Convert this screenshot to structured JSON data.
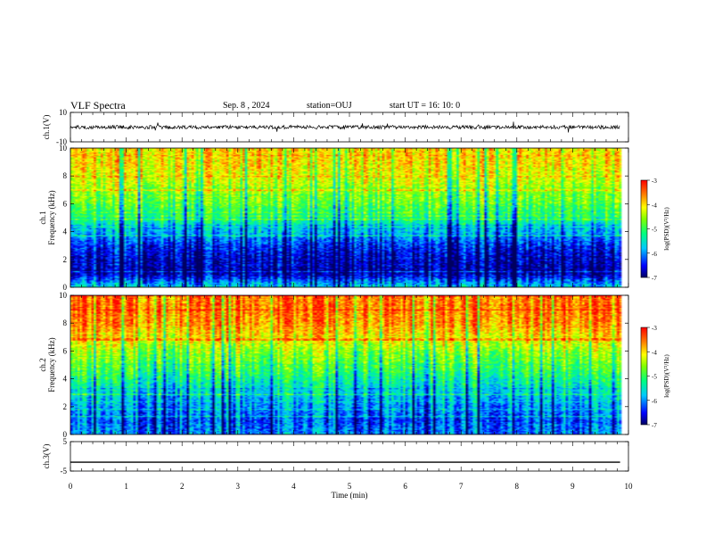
{
  "header": {
    "title": "VLF Spectra",
    "date": "Sep. 8 , 2024",
    "station": "station=OUJ",
    "start": "start UT =  16: 10: 0"
  },
  "chart_data": [
    {
      "type": "line",
      "panel": "ch1-waveform",
      "ylabel": "ch.1(V)",
      "ylim": [
        -10,
        10
      ],
      "yticks": [
        "10",
        "-10"
      ],
      "x_range_min": [
        0,
        9.85
      ],
      "baseline": 0,
      "color": "#000000"
    },
    {
      "type": "heatmap",
      "panel": "ch1-spectrogram",
      "ylabel": [
        "ch.1",
        "Frequency (kHz)"
      ],
      "ylim": [
        0,
        10
      ],
      "yticks": [
        "0",
        "2",
        "4",
        "6",
        "8",
        "10"
      ],
      "colorbar": {
        "label": "log(PSD)(V²/Hz)",
        "ticks": [
          "-3",
          "-4",
          "-5",
          "-6",
          "-7"
        ],
        "range": [
          -7,
          -3
        ]
      },
      "profile_khz": [
        0,
        1,
        2,
        3,
        4,
        5,
        6,
        7,
        8,
        9,
        10
      ],
      "profile_logpsd": [
        -5.6,
        -6.8,
        -6.7,
        -6.4,
        -5.8,
        -5.2,
        -4.8,
        -4.5,
        -4.2,
        -4.0,
        -4.0
      ]
    },
    {
      "type": "heatmap",
      "panel": "ch2-spectrogram",
      "ylabel": [
        "ch.2",
        "Frequency (kHz)"
      ],
      "ylim": [
        0,
        10
      ],
      "yticks": [
        "0",
        "2",
        "4",
        "6",
        "8",
        "10"
      ],
      "colorbar": {
        "label": "log(PSD)(V²/Hz)",
        "ticks": [
          "-3",
          "-4",
          "-5",
          "-6",
          "-7"
        ],
        "range": [
          -7,
          -3
        ]
      },
      "profile_khz": [
        0,
        1,
        2,
        3,
        4,
        5,
        6,
        7,
        8,
        9,
        10
      ],
      "profile_logpsd": [
        -6.0,
        -6.2,
        -5.9,
        -5.6,
        -5.2,
        -4.8,
        -4.5,
        -4.0,
        -3.6,
        -3.5,
        -3.5
      ]
    },
    {
      "type": "line",
      "panel": "ch3-waveform",
      "ylabel": "ch.3(V)",
      "ylim": [
        -5,
        5
      ],
      "yticks": [
        "5",
        "-5"
      ],
      "xlabel": "Time (min)",
      "xlim": [
        0,
        10
      ],
      "xticks": [
        "0",
        "1",
        "2",
        "3",
        "4",
        "5",
        "6",
        "7",
        "8",
        "9",
        "10"
      ],
      "x": [
        0,
        9.85
      ],
      "y": [
        -2,
        -2
      ],
      "color": "#000000"
    }
  ]
}
